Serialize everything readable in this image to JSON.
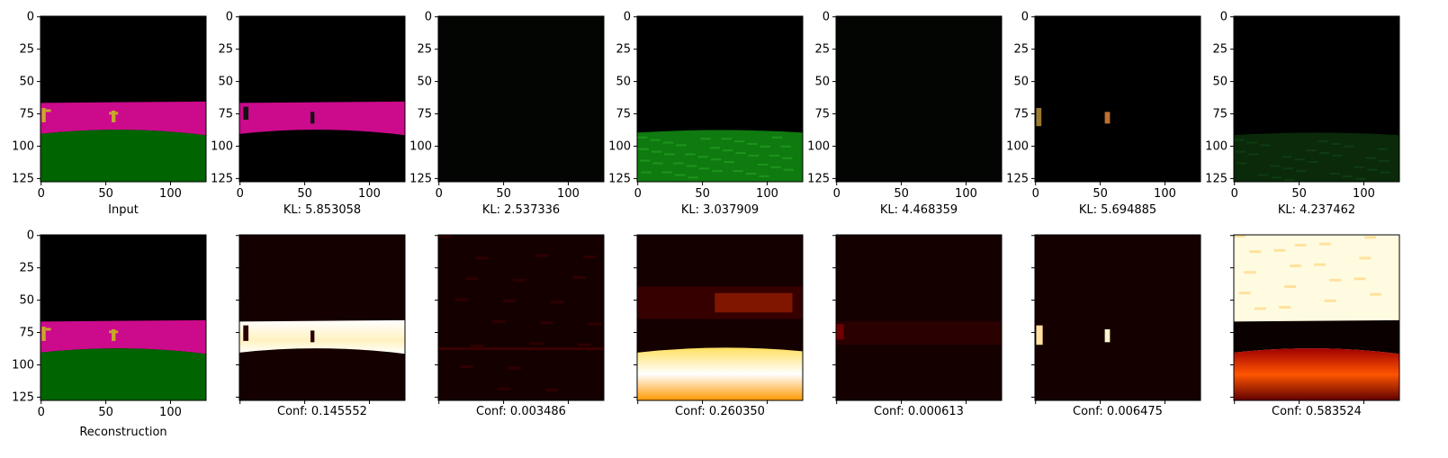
{
  "figure": {
    "top_row": [
      {
        "id": "input",
        "caption": "Input",
        "show_y_ticks": true
      },
      {
        "id": "slot1",
        "caption": "KL: 5.853058",
        "show_y_ticks": true
      },
      {
        "id": "slot2",
        "caption": "KL: 2.537336",
        "show_y_ticks": true
      },
      {
        "id": "slot3",
        "caption": "KL: 3.037909",
        "show_y_ticks": true
      },
      {
        "id": "slot4",
        "caption": "KL: 4.468359",
        "show_y_ticks": true
      },
      {
        "id": "slot5",
        "caption": "KL: 5.694885",
        "show_y_ticks": true
      },
      {
        "id": "slot6",
        "caption": "KL: 4.237462",
        "show_y_ticks": true
      }
    ],
    "bottom_row": [
      {
        "id": "recon",
        "caption": "Reconstruction",
        "show_tick_labels": true
      },
      {
        "id": "conf1",
        "caption": "Conf: 0.145552",
        "show_tick_labels": false
      },
      {
        "id": "conf2",
        "caption": "Conf: 0.003486",
        "show_tick_labels": false
      },
      {
        "id": "conf3",
        "caption": "Conf: 0.260350",
        "show_tick_labels": false
      },
      {
        "id": "conf4",
        "caption": "Conf: 0.000613",
        "show_tick_labels": false
      },
      {
        "id": "conf5",
        "caption": "Conf: 0.006475",
        "show_tick_labels": false
      },
      {
        "id": "conf6",
        "caption": "Conf: 0.583524",
        "show_tick_labels": false
      }
    ],
    "x_ticks": [
      "0",
      "50",
      "100"
    ],
    "y_ticks": [
      "0",
      "25",
      "50",
      "75",
      "100",
      "125"
    ],
    "colors": {
      "black": "#000000",
      "magenta": "#cc0a8c",
      "green": "#006400",
      "key_gold": "#c8a82a",
      "heat_dark": "#150000",
      "heat_hot": "#ffffff"
    }
  }
}
